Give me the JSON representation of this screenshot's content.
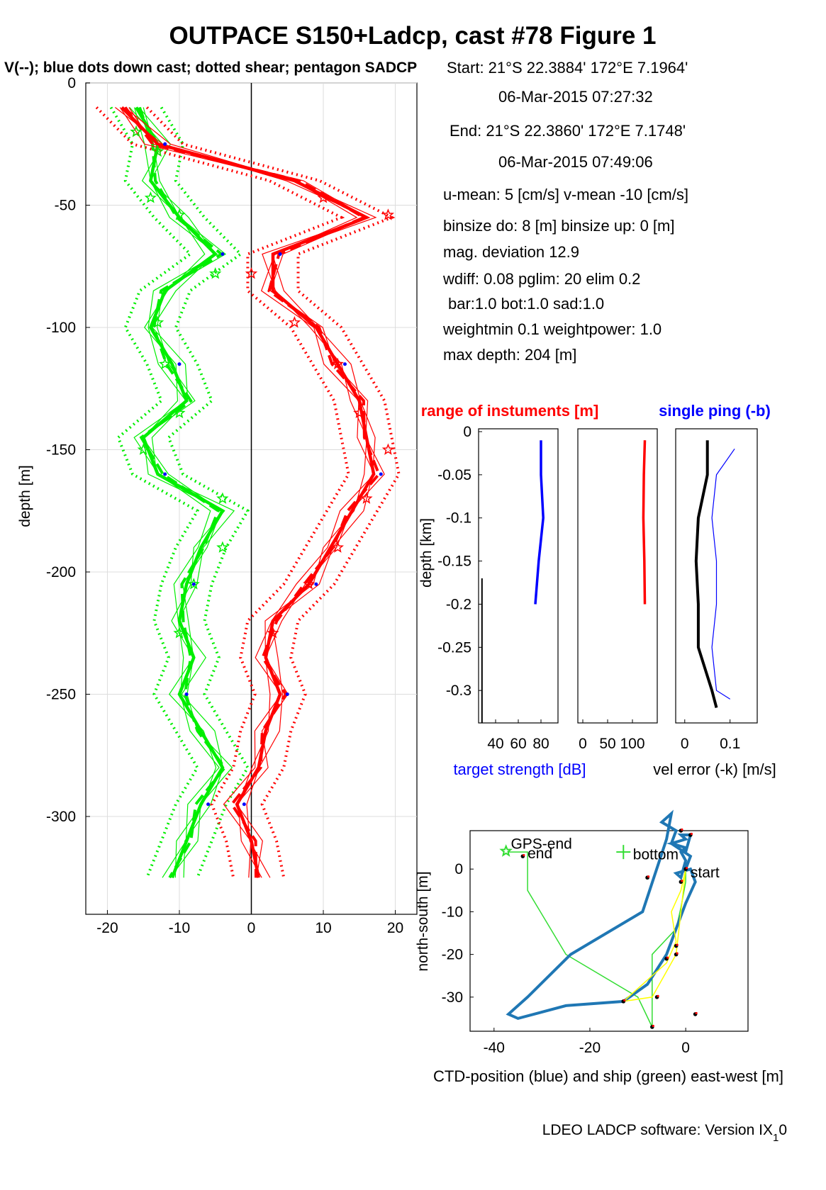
{
  "title": "OUTPACE S150+Ladcp, cast #78  Figure 1",
  "subtitle": "V(--); blue dots down cast; dotted shear; pentagon SADCP",
  "info_lines": [
    "Start:  21°S 22.3884'     172°E  7.1964'",
    "06-Mar-2015 07:27:32",
    "End:   21°S 22.3860'     172°E  7.1748'",
    "06-Mar-2015 07:49:06",
    "u-mean:   5 [cm/s]    v-mean -10 [cm/s]",
    "binsize do: 8 [m]  binsize up:  0 [m]",
    "mag. deviation 12.9",
    "wdiff: 0.08  pglim: 20  elim 0.2",
    "  bar:1.0 bot:1.0 sad:1.0",
    "weightmin 0.1  weightpower: 1.0",
    "max depth: 204 [m]"
  ],
  "footer": "LDEO LADCP software: Version IX",
  "footer_sub": "1",
  "footer_tail": "0",
  "colors": {
    "u": "#ff0000",
    "v": "#00ee00",
    "blue": "#0000ff",
    "black": "#000000",
    "ctd": "#1f77b4",
    "ship": "#33dd33",
    "track": "#ffff00"
  },
  "chart_data": [
    {
      "type": "line",
      "ylabel": "depth [m]",
      "xlabel": "",
      "xlim": [
        -23,
        23
      ],
      "ylim": [
        -340,
        0
      ],
      "xticks": [
        -20,
        -10,
        0,
        10,
        20
      ],
      "yticks": [
        0,
        -50,
        -100,
        -150,
        -200,
        -250,
        -300
      ],
      "grid": true,
      "depth": [
        -10,
        -25,
        -40,
        -55,
        -70,
        -85,
        -100,
        -115,
        -130,
        -145,
        -160,
        -175,
        -190,
        -205,
        -220,
        -235,
        -250,
        -265,
        -280,
        -295,
        -310,
        -325
      ],
      "series": [
        {
          "name": "u",
          "values": [
            -18,
            -13,
            6,
            16,
            3,
            3,
            9,
            12,
            15,
            16,
            17,
            14,
            11,
            8,
            3,
            2,
            4,
            2,
            1,
            -2,
            0,
            1
          ]
        },
        {
          "name": "v",
          "values": [
            -16,
            -13,
            -14,
            -10,
            -5,
            -12,
            -14,
            -11,
            -9,
            -15,
            -13,
            -4,
            -7,
            -9,
            -10,
            -8,
            -10,
            -7,
            -4,
            -7,
            -9,
            -11
          ]
        }
      ],
      "sadcp_depth": [
        -20,
        -28,
        -47,
        -54,
        -78,
        -98,
        -115,
        -135,
        -150,
        -170,
        -190,
        -205,
        -225
      ],
      "sadcp_u": [
        -16,
        -13,
        10,
        19,
        0,
        6,
        12,
        15,
        19,
        16,
        12,
        8,
        3
      ],
      "sadcp_v": [
        -16,
        -13,
        -14,
        -10,
        -5,
        -13,
        -12,
        -10,
        -15,
        -4,
        -4,
        -8,
        -10
      ]
    },
    {
      "type": "line",
      "title": "range of instuments [m]",
      "xlabel": "target strength [dB]",
      "ylabel": "depth [km]",
      "xticks": [
        40,
        60,
        80
      ],
      "yticks": [
        0,
        -0.05,
        -0.1,
        -0.15,
        -0.2,
        -0.25,
        -0.3
      ],
      "ylim": [
        -0.33,
        0
      ],
      "series": [
        {
          "name": "target strength",
          "depth": [
            -0.01,
            -0.05,
            -0.1,
            -0.15,
            -0.2
          ],
          "values": [
            80,
            80,
            82,
            78,
            75
          ]
        }
      ]
    },
    {
      "type": "line",
      "xticks": [
        0,
        50,
        100
      ],
      "ylim": [
        -0.33,
        0
      ],
      "series": [
        {
          "name": "range",
          "depth": [
            -0.01,
            -0.05,
            -0.1,
            -0.15,
            -0.2
          ],
          "values": [
            125,
            123,
            122,
            124,
            125
          ]
        }
      ]
    },
    {
      "type": "line",
      "title": "single ping (-b)",
      "xlabel": "vel error (-k) [m/s]",
      "xticks": [
        0,
        0.1
      ],
      "ylim": [
        -0.33,
        0
      ],
      "series": [
        {
          "name": "vel error",
          "depth": [
            -0.01,
            -0.05,
            -0.1,
            -0.15,
            -0.2,
            -0.25,
            -0.3,
            -0.32
          ],
          "values": [
            0.05,
            0.05,
            0.03,
            0.025,
            0.03,
            0.03,
            0.06,
            0.07
          ]
        },
        {
          "name": "single ping",
          "depth": [
            -0.02,
            -0.05,
            -0.1,
            -0.15,
            -0.2,
            -0.25,
            -0.3,
            -0.31
          ],
          "values": [
            0.11,
            0.07,
            0.06,
            0.07,
            0.07,
            0.06,
            0.07,
            0.1
          ]
        }
      ]
    },
    {
      "type": "line",
      "xlabel": "CTD-position (blue) and ship (green) east-west [m]",
      "ylabel": "north-south [m]",
      "xlim": [
        -45,
        13
      ],
      "ylim": [
        -38,
        9
      ],
      "xticks": [
        -40,
        -20,
        0
      ],
      "yticks": [
        0,
        -10,
        -20,
        -30
      ],
      "annotations": [
        "GPS-end",
        "end",
        "bottom",
        "start"
      ],
      "series": [
        {
          "name": "CTD-position",
          "x": [
            0,
            1,
            -3,
            -2,
            -5,
            -3,
            -4,
            -9,
            -24,
            -33,
            -37,
            -35,
            -25,
            -13,
            -8,
            -4,
            -2,
            0,
            2,
            1,
            -2,
            -1,
            0,
            -1,
            0,
            -3,
            0,
            -1,
            1,
            0
          ],
          "y": [
            0,
            3,
            6,
            9,
            11,
            13,
            7,
            -10,
            -20,
            -30,
            -34,
            -35,
            -32,
            -31,
            -27,
            -20,
            -14,
            -8,
            -3,
            0,
            -1,
            -2,
            2,
            4,
            5,
            6,
            7,
            8,
            8,
            4
          ]
        },
        {
          "name": "ship",
          "x": [
            -37,
            -33,
            -33,
            -25,
            -10,
            -7,
            -7,
            -2,
            -1,
            0,
            0
          ],
          "y": [
            4,
            4,
            -5,
            -20,
            -30,
            -37,
            -20,
            -14,
            -9,
            -3,
            0
          ]
        }
      ]
    }
  ]
}
